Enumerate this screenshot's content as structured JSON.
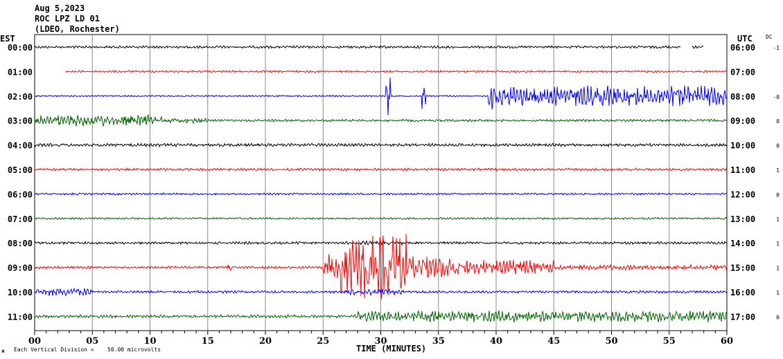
{
  "header": {
    "date": "Aug 5,2023",
    "station": "ROC LPZ LD 01",
    "network": "(LDEO, Rochester)"
  },
  "left_zone_label": "EST",
  "right_zone_label": "UTC",
  "dc_label": "DC",
  "footer": {
    "mark": "ж",
    "scale_label": "Each Vertical Division =",
    "scale_value": "50.00 microvolts"
  },
  "chart_data": {
    "type": "line",
    "title": "Aug 5,2023 ROC LPZ LD 01 (LDEO, Rochester)",
    "xlabel": "TIME (MINUTES)",
    "xlim": [
      0,
      60
    ],
    "x_ticks": [
      "00",
      "05",
      "10",
      "15",
      "20",
      "25",
      "30",
      "35",
      "40",
      "45",
      "50",
      "55",
      "60"
    ],
    "grid": true,
    "traces": [
      {
        "est": "00:00",
        "utc": "06:00",
        "dc": "-1",
        "color": "#000000",
        "start": 0,
        "end": 56,
        "extra": [
          57,
          58
        ],
        "base": 0.05,
        "events": []
      },
      {
        "est": "01:00",
        "utc": "07:00",
        "dc": "",
        "color": "#ff0000",
        "start": 2.7,
        "end": 60,
        "base": 0.04,
        "events": []
      },
      {
        "est": "02:00",
        "utc": "08:00",
        "dc": "-0",
        "color": "#0000ff",
        "start": 0,
        "end": 60,
        "base": 0.03,
        "events": [
          [
            30.4,
            30.9,
            0.75
          ],
          [
            33.5,
            33.9,
            0.5
          ],
          [
            39.3,
            40,
            0.55
          ],
          [
            40,
            60,
            0.38
          ]
        ]
      },
      {
        "est": "03:00",
        "utc": "09:00",
        "dc": "0",
        "color": "#006400",
        "start": 0,
        "end": 60,
        "base": 0.05,
        "events": [
          [
            0,
            11,
            0.22
          ],
          [
            11,
            15,
            0.1
          ]
        ]
      },
      {
        "est": "04:00",
        "utc": "10:00",
        "dc": "0",
        "color": "#000000",
        "start": 0,
        "end": 60,
        "base": 0.06,
        "events": []
      },
      {
        "est": "05:00",
        "utc": "11:00",
        "dc": "1",
        "color": "#ff0000",
        "start": 0,
        "end": 60,
        "base": 0.05,
        "events": []
      },
      {
        "est": "06:00",
        "utc": "12:00",
        "dc": "0",
        "color": "#0000ff",
        "start": 0,
        "end": 60,
        "base": 0.04,
        "events": []
      },
      {
        "est": "07:00",
        "utc": "13:00",
        "dc": "1",
        "color": "#006400",
        "start": 0,
        "end": 60,
        "base": 0.04,
        "events": []
      },
      {
        "est": "08:00",
        "utc": "14:00",
        "dc": "1",
        "color": "#000000",
        "start": 0,
        "end": 60,
        "base": 0.05,
        "events": [
          [
            28,
            32,
            0.08
          ]
        ]
      },
      {
        "est": "09:00",
        "utc": "15:00",
        "dc": "1",
        "color": "#ff0000",
        "start": 0,
        "end": 60,
        "base": 0.05,
        "events": [
          [
            16.7,
            17.1,
            0.25
          ],
          [
            25,
            26.5,
            0.5
          ],
          [
            26.5,
            32.3,
            1.3
          ],
          [
            32.3,
            36,
            0.45
          ],
          [
            36,
            45,
            0.3
          ],
          [
            45,
            60,
            0.1
          ]
        ]
      },
      {
        "est": "10:00",
        "utc": "16:00",
        "dc": "1",
        "color": "#0000ff",
        "start": 0,
        "end": 60,
        "base": 0.05,
        "events": [
          [
            0,
            5,
            0.15
          ],
          [
            27,
            32,
            0.12
          ]
        ]
      },
      {
        "est": "11:00",
        "utc": "17:00",
        "dc": "0",
        "color": "#006400",
        "start": 0,
        "end": 60,
        "base": 0.06,
        "events": [
          [
            28,
            60,
            0.22
          ]
        ]
      }
    ]
  }
}
